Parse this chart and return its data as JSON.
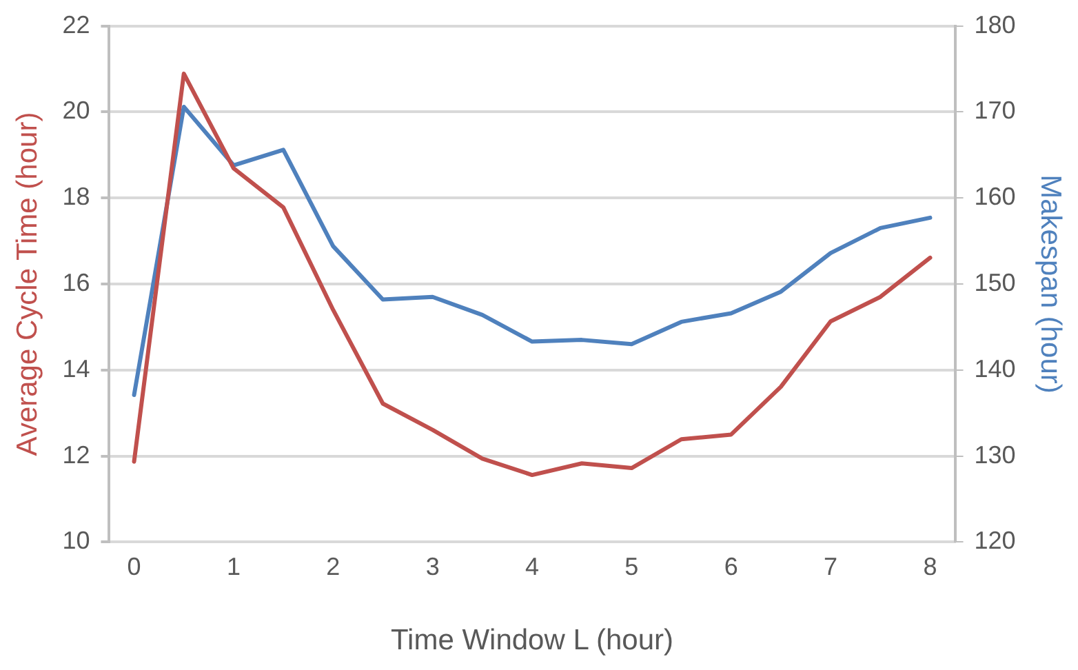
{
  "chart_data": {
    "type": "line",
    "xlabel": "Time Window L (hour)",
    "ylabel": "Average Cycle Time (hour)",
    "y2label": "Makespan (hour)",
    "x": [
      0,
      0.5,
      1,
      1.5,
      2,
      2.5,
      3,
      3.5,
      4,
      4.5,
      5,
      5.5,
      6,
      6.5,
      7,
      7.5,
      8
    ],
    "xlim": [
      -0.25,
      8.25
    ],
    "xticks": [
      0,
      1,
      2,
      3,
      4,
      5,
      6,
      7,
      8
    ],
    "ylim": [
      10,
      22
    ],
    "yticks": [
      10,
      12,
      14,
      16,
      18,
      20,
      22
    ],
    "y2lim": [
      120,
      180
    ],
    "y2ticks": [
      120,
      130,
      140,
      150,
      160,
      170,
      180
    ],
    "grid": "y",
    "legend": false,
    "marker": "none",
    "line_style": "solid",
    "series": [
      {
        "color": "#c0504d",
        "values": [
          11.87,
          20.89,
          18.69,
          17.78,
          15.4,
          13.22,
          12.61,
          11.94,
          11.56,
          11.83,
          11.72,
          12.39,
          12.5,
          13.61,
          15.13,
          15.7,
          16.61
        ]
      },
      {
        "color": "#4f81bd",
        "axis": "y2",
        "values": [
          137.1,
          170.6,
          163.8,
          165.6,
          154.4,
          148.2,
          148.5,
          146.4,
          143.3,
          143.5,
          143,
          145.6,
          146.6,
          149.1,
          153.6,
          156.5,
          157.7
        ]
      }
    ]
  }
}
